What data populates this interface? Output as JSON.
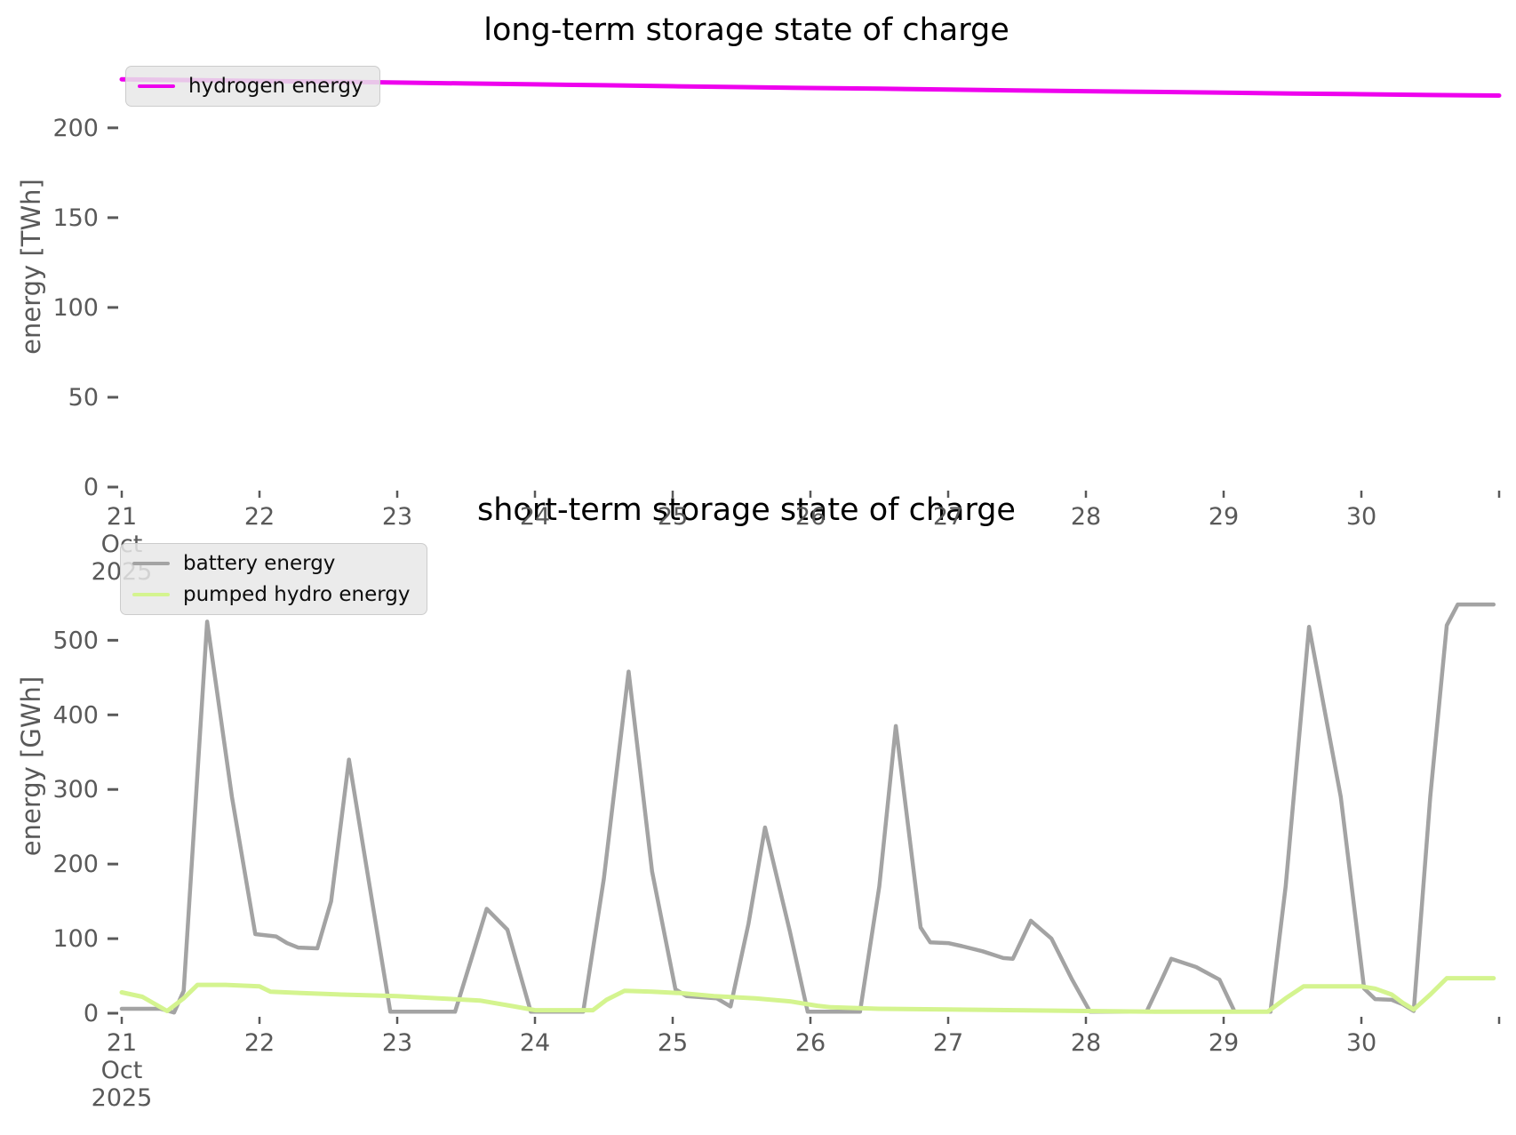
{
  "figure": {
    "background": "#ffffff",
    "tick_color": "#595959",
    "title_color": "#000000"
  },
  "chart_data": [
    {
      "type": "line",
      "title": "long-term storage state of charge",
      "ylabel": "energy [TWh]",
      "xlabel": "",
      "xlim": [
        21,
        31
      ],
      "ylim": [
        0,
        240
      ],
      "grid": false,
      "legend_position": "upper left",
      "xticks": [
        {
          "v": 21,
          "label": "21\nOct\n2025"
        },
        {
          "v": 22,
          "label": "22"
        },
        {
          "v": 23,
          "label": "23"
        },
        {
          "v": 24,
          "label": "24"
        },
        {
          "v": 25,
          "label": "25"
        },
        {
          "v": 26,
          "label": "26"
        },
        {
          "v": 27,
          "label": "27"
        },
        {
          "v": 28,
          "label": "28"
        },
        {
          "v": 29,
          "label": "29"
        },
        {
          "v": 30,
          "label": "30"
        },
        {
          "v": 31,
          "label": ""
        }
      ],
      "yticks": [
        {
          "v": 0,
          "label": "0"
        },
        {
          "v": 50,
          "label": "50"
        },
        {
          "v": 100,
          "label": "100"
        },
        {
          "v": 150,
          "label": "150"
        },
        {
          "v": 200,
          "label": "200"
        }
      ],
      "series": [
        {
          "name": "hydrogen energy",
          "color": "#ee00ee",
          "width": 5,
          "x": [
            21,
            21.5,
            22,
            22.5,
            23,
            23.5,
            24,
            24.5,
            25,
            25.5,
            26,
            26.5,
            27,
            27.5,
            28,
            28.5,
            29,
            29.5,
            30,
            30.5,
            31
          ],
          "y": [
            227,
            226.6,
            226.1,
            225.7,
            225.2,
            224.7,
            224.2,
            223.7,
            223.2,
            222.7,
            222.2,
            221.8,
            221.3,
            220.8,
            220.4,
            220,
            219.6,
            219.1,
            218.7,
            218.3,
            218
          ]
        }
      ]
    },
    {
      "type": "line",
      "title": "short-term storage state of charge",
      "ylabel": "energy [GWh]",
      "xlabel": "",
      "xlim": [
        21,
        31
      ],
      "ylim": [
        0,
        560
      ],
      "grid": false,
      "legend_position": "upper left",
      "xticks": [
        {
          "v": 21,
          "label": "21\nOct\n2025"
        },
        {
          "v": 22,
          "label": "22"
        },
        {
          "v": 23,
          "label": "23"
        },
        {
          "v": 24,
          "label": "24"
        },
        {
          "v": 25,
          "label": "25"
        },
        {
          "v": 26,
          "label": "26"
        },
        {
          "v": 27,
          "label": "27"
        },
        {
          "v": 28,
          "label": "28"
        },
        {
          "v": 29,
          "label": "29"
        },
        {
          "v": 30,
          "label": "30"
        },
        {
          "v": 31,
          "label": ""
        }
      ],
      "yticks": [
        {
          "v": 0,
          "label": "0"
        },
        {
          "v": 100,
          "label": "100"
        },
        {
          "v": 200,
          "label": "200"
        },
        {
          "v": 300,
          "label": "300"
        },
        {
          "v": 400,
          "label": "400"
        },
        {
          "v": 500,
          "label": "500"
        }
      ],
      "series": [
        {
          "name": "battery energy",
          "color": "#a3a3a3",
          "width": 4.5,
          "x": [
            21.0,
            21.28,
            21.38,
            21.45,
            21.62,
            21.8,
            21.97,
            22.12,
            22.2,
            22.28,
            22.42,
            22.52,
            22.65,
            22.8,
            22.95,
            23.42,
            23.55,
            23.65,
            23.8,
            23.97,
            24.35,
            24.5,
            24.68,
            24.85,
            25.02,
            25.1,
            25.32,
            25.42,
            25.55,
            25.67,
            25.85,
            25.98,
            26.36,
            26.5,
            26.62,
            26.8,
            26.87,
            27.0,
            27.1,
            27.25,
            27.4,
            27.47,
            27.6,
            27.75,
            27.9,
            28.03,
            28.44,
            28.55,
            28.62,
            28.8,
            28.97,
            29.08,
            29.34,
            29.45,
            29.62,
            29.85,
            30.02,
            30.1,
            30.22,
            30.3,
            30.38,
            30.5,
            30.62,
            30.7,
            30.96
          ],
          "y": [
            6,
            6,
            1,
            30,
            525,
            290,
            106,
            103,
            94,
            88,
            87,
            150,
            340,
            170,
            2,
            2,
            80,
            140,
            112,
            2,
            2,
            180,
            458,
            190,
            32,
            23,
            20,
            9,
            120,
            249,
            110,
            2,
            2,
            170,
            385,
            115,
            95,
            94,
            90,
            83,
            74,
            73,
            124,
            100,
            45,
            2,
            2,
            45,
            73,
            62,
            45,
            2,
            2,
            170,
            518,
            290,
            33,
            19,
            18,
            12,
            3,
            290,
            520,
            548,
            548
          ]
        },
        {
          "name": "pumped hydro energy",
          "color": "#d4f48f",
          "width": 5,
          "x": [
            21.0,
            21.15,
            21.33,
            21.45,
            21.55,
            21.75,
            22.0,
            22.08,
            22.3,
            22.6,
            23.0,
            23.3,
            23.6,
            23.85,
            24.0,
            24.42,
            24.52,
            24.65,
            24.85,
            25.05,
            25.3,
            25.6,
            25.85,
            26.05,
            26.15,
            26.5,
            27.0,
            27.5,
            28.0,
            28.5,
            29.0,
            29.32,
            29.45,
            29.58,
            30.0,
            30.1,
            30.22,
            30.3,
            30.38,
            30.5,
            30.62,
            30.96
          ],
          "y": [
            28,
            22,
            3,
            20,
            38,
            38,
            36,
            29,
            27,
            25,
            23,
            20,
            17,
            9,
            4,
            4,
            18,
            30,
            29,
            27,
            23,
            20,
            16,
            10,
            8,
            6,
            5,
            4,
            3,
            2,
            2,
            2,
            20,
            36,
            36,
            33,
            25,
            14,
            5,
            25,
            47,
            47
          ]
        }
      ]
    }
  ]
}
